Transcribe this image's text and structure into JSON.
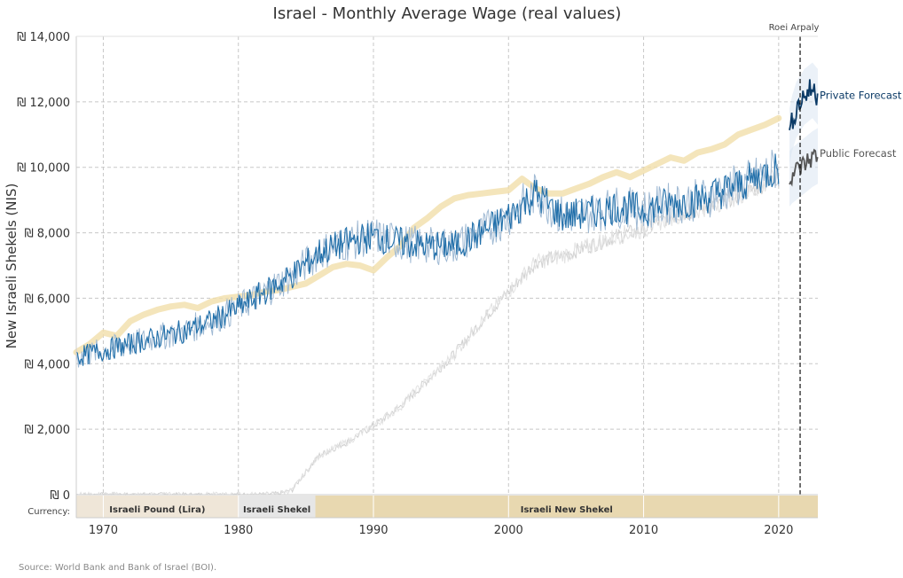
{
  "chart_data": {
    "type": "line",
    "title": "Israel - Monthly Average Wage (real values)",
    "ylabel": "New Israeli Shekels (NIS)",
    "xlabel": "",
    "xlim": [
      1968,
      2022.9
    ],
    "ylim": [
      0,
      14000
    ],
    "x_ticks": [
      "1970",
      "1980",
      "1990",
      "2000",
      "2010",
      "2020"
    ],
    "y_ticks": [
      "₪ 0",
      "₪ 2,000",
      "₪ 4,000",
      "₪ 6,000",
      "₪ 8,000",
      "₪ 10,000",
      "₪ 12,000",
      "₪ 14,000"
    ],
    "grid": true,
    "author_note": "Roei Arpaly",
    "forecast_start": 2020.8,
    "source": "Source: World Bank and Bank of Israel (BOI).",
    "currency_label": "Currency:",
    "currency_periods": [
      {
        "label": "Israeli Pound (Lira)",
        "from": 1968,
        "to": 1980,
        "color": "#efe6d8"
      },
      {
        "label": "Israeli Shekel",
        "from": 1980,
        "to": 1985.7,
        "color": "#e6e6e6"
      },
      {
        "label": "Israeli New Shekel",
        "from": 1985.7,
        "to": 2022.9,
        "color": "#e8d8b0"
      }
    ],
    "series": [
      {
        "name": "",
        "role": "annual-trend",
        "color": "#f1deaa",
        "x": [
          1968,
          1969,
          1970,
          1971,
          1972,
          1973,
          1974,
          1975,
          1976,
          1977,
          1978,
          1979,
          1980,
          1981,
          1982,
          1983,
          1984,
          1985,
          1986,
          1987,
          1988,
          1989,
          1990,
          1991,
          1992,
          1993,
          1994,
          1995,
          1996,
          1997,
          1998,
          1999,
          2000,
          2001,
          2002,
          2003,
          2004,
          2005,
          2006,
          2007,
          2008,
          2009,
          2010,
          2011,
          2012,
          2013,
          2014,
          2015,
          2016,
          2017,
          2018,
          2019,
          2020
        ],
        "y": [
          4350,
          4600,
          4950,
          4850,
          5300,
          5500,
          5650,
          5750,
          5800,
          5700,
          5900,
          6000,
          6050,
          6100,
          6200,
          6250,
          6350,
          6450,
          6700,
          6950,
          7050,
          7000,
          6850,
          7250,
          7600,
          8150,
          8450,
          8800,
          9050,
          9150,
          9200,
          9250,
          9300,
          9650,
          9350,
          9200,
          9200,
          9350,
          9500,
          9700,
          9850,
          9700,
          9900,
          10100,
          10300,
          10200,
          10450,
          10550,
          10700,
          11000,
          11150,
          11300,
          11500
        ]
      },
      {
        "name": "",
        "role": "monthly-nominal-trend",
        "color": "#d0d0d0",
        "x": [
          1968,
          1975,
          1980,
          1982,
          1983,
          1984,
          1985,
          1986,
          1988,
          1990,
          1992,
          1994,
          1996,
          1998,
          2000,
          2002,
          2004,
          2006,
          2008,
          2010,
          2012,
          2014,
          2016,
          2018,
          2020
        ],
        "y": [
          0,
          0,
          0,
          10,
          30,
          150,
          700,
          1200,
          1600,
          2100,
          2700,
          3500,
          4300,
          5300,
          6200,
          7100,
          7300,
          7600,
          7900,
          8100,
          8500,
          8700,
          9000,
          9300,
          9700
        ]
      },
      {
        "name": "",
        "role": "monthly-real",
        "color": "#1f6ea9",
        "x": [
          1968,
          1970,
          1972,
          1974,
          1976,
          1978,
          1980,
          1982,
          1984,
          1986,
          1988,
          1990,
          1992,
          1994,
          1996,
          1998,
          2000,
          2002,
          2004,
          2006,
          2008,
          2010,
          2012,
          2014,
          2016,
          2018,
          2020
        ],
        "y": [
          4200,
          4400,
          4600,
          4800,
          5000,
          5300,
          5700,
          6200,
          6700,
          7400,
          7700,
          7900,
          7700,
          7600,
          7600,
          8000,
          8500,
          9200,
          8500,
          8600,
          8800,
          8700,
          8900,
          9000,
          9300,
          9600,
          10000
        ]
      },
      {
        "name": "Private Forecast",
        "role": "forecast",
        "color": "#0b3a66",
        "x": [
          2020.8,
          2021,
          2021.3,
          2021.6,
          2021.9,
          2022.2,
          2022.5,
          2022.9
        ],
        "y": [
          11000,
          11400,
          11800,
          12000,
          12200,
          12300,
          12400,
          12200
        ]
      },
      {
        "name": "Public Forecast",
        "role": "forecast",
        "color": "#555555",
        "x": [
          2020.8,
          2021,
          2021.3,
          2021.6,
          2021.9,
          2022.2,
          2022.5,
          2022.9
        ],
        "y": [
          9700,
          9800,
          9900,
          10000,
          10100,
          10200,
          10300,
          10400
        ]
      }
    ]
  }
}
